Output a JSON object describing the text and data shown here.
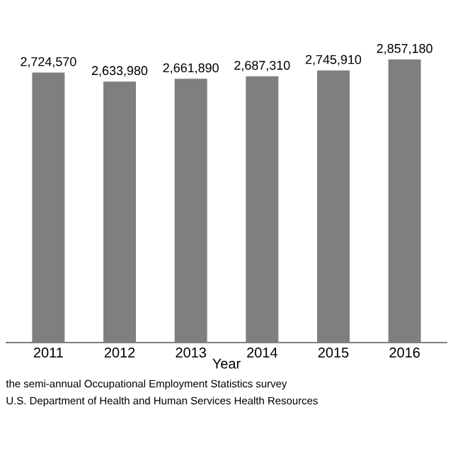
{
  "chart_data": {
    "type": "bar",
    "xlabel": "Year",
    "categories": [
      "2011",
      "2012",
      "2013",
      "2014",
      "2015",
      "2016"
    ],
    "values": [
      2724570,
      2633980,
      2661890,
      2687310,
      2745910,
      2857180
    ],
    "value_labels": [
      "2,724,570",
      "2,633,980",
      "2,661,890",
      "2,687,310",
      "2,745,910",
      "2,857,180"
    ],
    "color": "#7f7f82",
    "tick_labels": "x",
    "annotations": [
      "the semi-annual Occupational Employment Statistics survey",
      "U.S. Department of Health and Human Services Health Resources"
    ]
  }
}
